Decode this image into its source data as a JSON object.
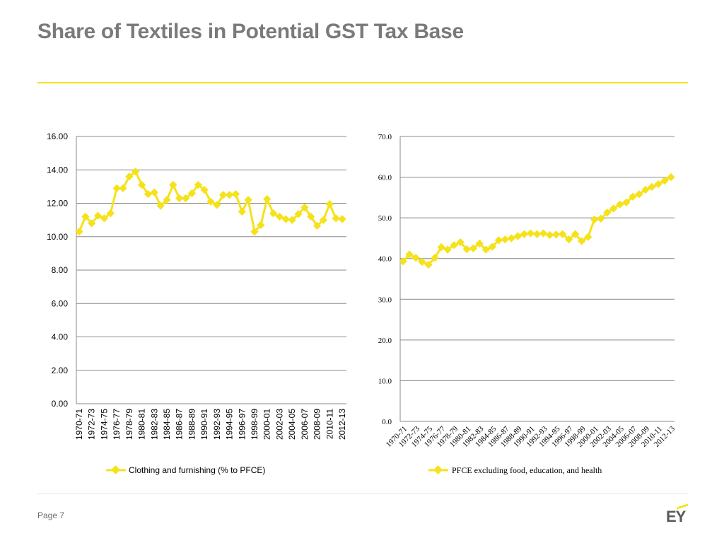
{
  "slide": {
    "title": "Share of Textiles in Potential GST Tax Base",
    "page_label": "Page 7",
    "logo_text": "EY",
    "accent_color": "#f5e21a",
    "series_color": "#f5e21a",
    "title_color": "#7a7a7a"
  },
  "chart_data": [
    {
      "type": "line",
      "series": [
        {
          "name": "Clothing and furnishing (% to PFCE)",
          "values": [
            10.3,
            11.2,
            10.8,
            11.25,
            11.1,
            11.4,
            12.9,
            12.9,
            13.6,
            13.9,
            13.1,
            12.55,
            12.65,
            11.85,
            12.2,
            13.1,
            12.3,
            12.3,
            12.6,
            13.1,
            12.8,
            12.1,
            11.9,
            12.5,
            12.5,
            12.55,
            11.5,
            12.2,
            10.3,
            10.7,
            12.25,
            11.4,
            11.2,
            11.05,
            11.0,
            11.35,
            11.75,
            11.2,
            10.65,
            11.0,
            11.95,
            11.1,
            11.05
          ]
        }
      ],
      "tick_labels": [
        "1970-71",
        "1972-73",
        "1974-75",
        "1976-77",
        "1978-79",
        "1980-81",
        "1982-83",
        "1984-85",
        "1986-87",
        "1988-89",
        "1990-91",
        "1992-93",
        "1994-95",
        "1996-97",
        "1998-99",
        "2000-01",
        "2002-03",
        "2004-05",
        "2006-07",
        "2008-09",
        "2010-11",
        "2012-13"
      ],
      "y_ticks": [
        "16.00",
        "14.00",
        "12.00",
        "10.00",
        "8.00",
        "6.00",
        "4.00",
        "2.00",
        "0.00"
      ],
      "ylim": [
        0,
        16
      ],
      "legend": "Clothing and furnishing (% to PFCE)",
      "legend_position": "bottom",
      "grid": true
    },
    {
      "type": "line",
      "series": [
        {
          "name": "PFCE excluding food, education, and health",
          "values": [
            39.3,
            41.0,
            40.2,
            39.2,
            38.5,
            40.2,
            42.8,
            42.2,
            43.3,
            44.0,
            42.3,
            42.5,
            43.7,
            42.2,
            42.9,
            44.5,
            44.7,
            45.0,
            45.5,
            46.0,
            46.2,
            46.0,
            46.2,
            45.8,
            45.9,
            46.0,
            44.7,
            46.0,
            44.3,
            45.3,
            49.6,
            49.8,
            51.3,
            52.3,
            53.3,
            53.8,
            55.2,
            55.8,
            56.9,
            57.6,
            58.3,
            59.1,
            60.0
          ]
        }
      ],
      "tick_labels": [
        "1970-71",
        "1972-73",
        "1974-75",
        "1976-77",
        "1978-79",
        "1980-81",
        "1982-83",
        "1984-85",
        "1986-87",
        "1988-89",
        "1990-91",
        "1992-93",
        "1994-95",
        "1996-97",
        "1998-99",
        "2000-01",
        "2002-03",
        "2004-05",
        "2006-07",
        "2008-09",
        "2010-11",
        "2012-13"
      ],
      "y_ticks": [
        "70.0",
        "60.0",
        "50.0",
        "40.0",
        "30.0",
        "20.0",
        "10.0",
        "0.0"
      ],
      "ylim": [
        0,
        70
      ],
      "legend": "PFCE excluding food, education, and health",
      "legend_position": "bottom",
      "grid": true
    }
  ]
}
